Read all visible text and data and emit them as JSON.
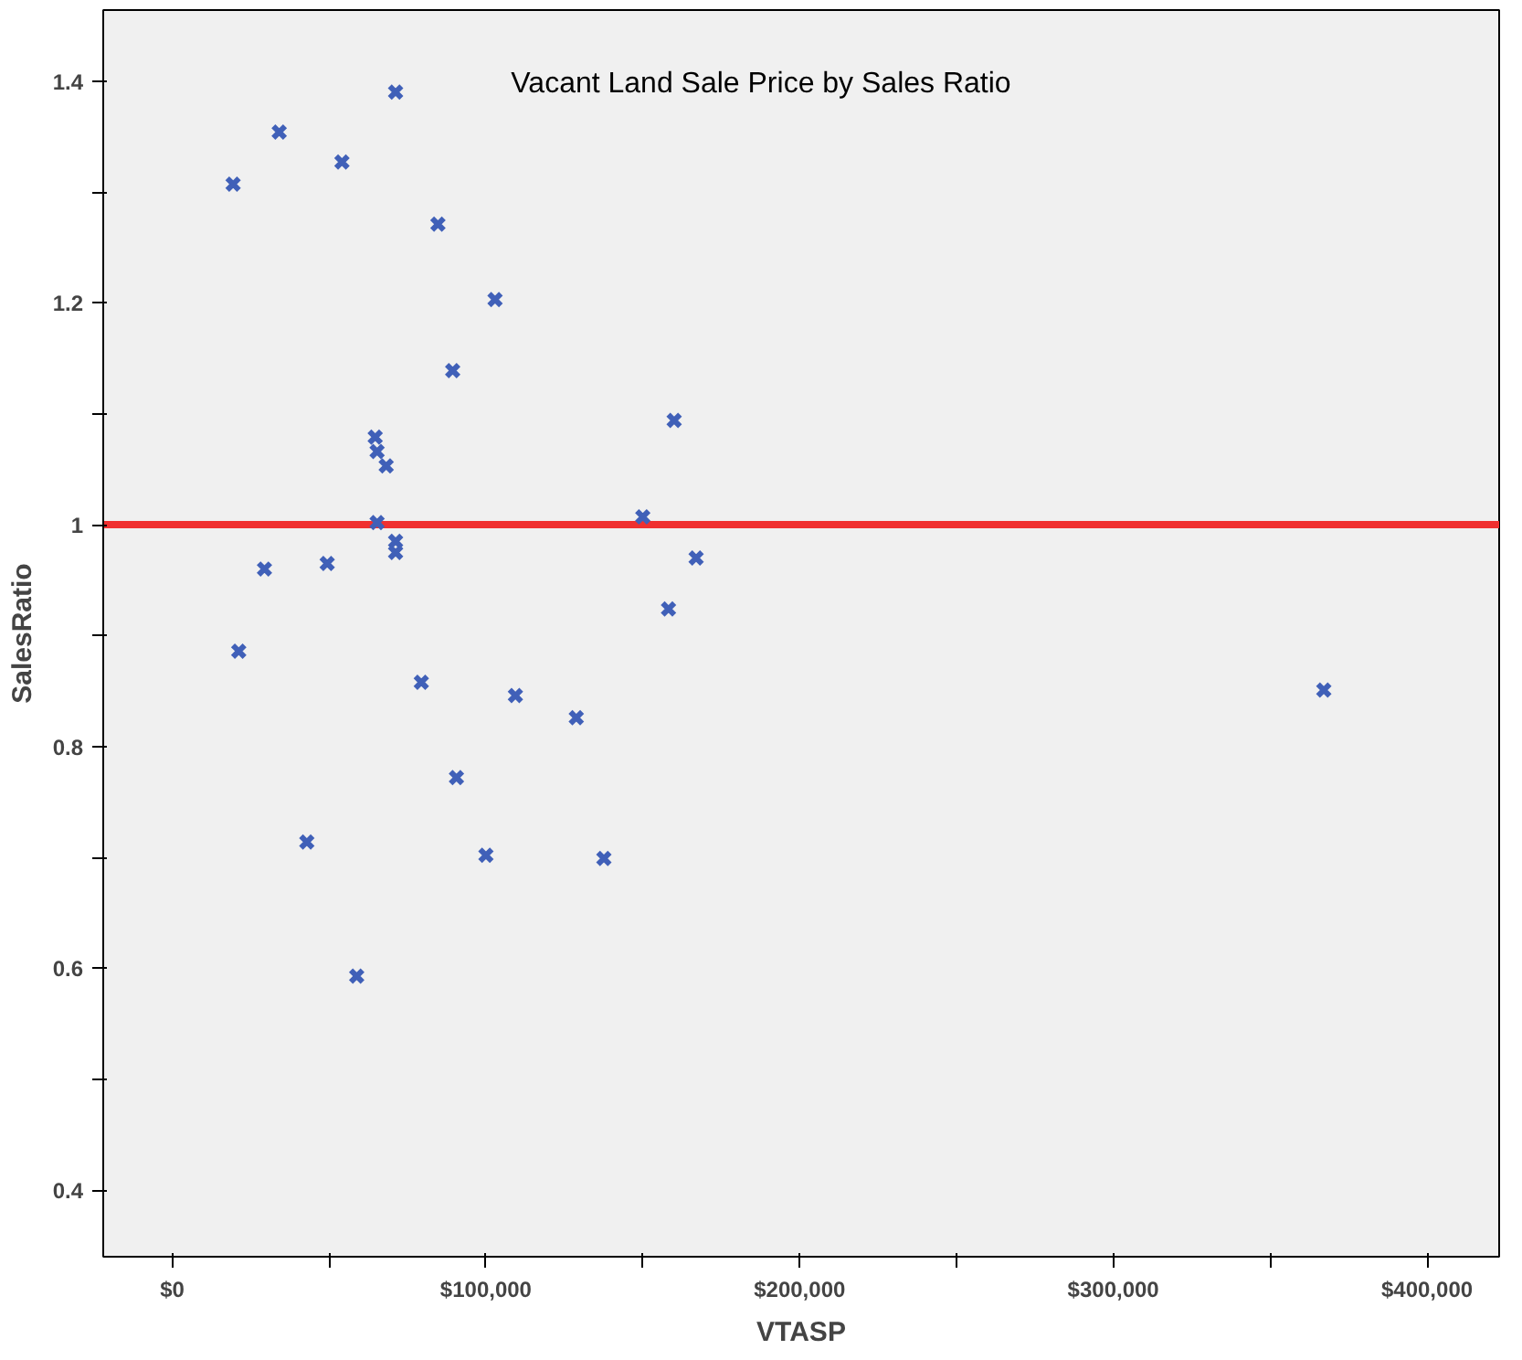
{
  "chart_data": {
    "type": "scatter",
    "title": "Vacant Land Sale Price by Sales Ratio",
    "xlabel": "VTASP",
    "ylabel": "SalesRatio",
    "x": [
      19400,
      34100,
      54100,
      71200,
      84700,
      102900,
      89400,
      160000,
      64700,
      65300,
      68200,
      65300,
      71200,
      71200,
      150000,
      167000,
      29400,
      49400,
      158200,
      21200,
      79400,
      109400,
      128800,
      367100,
      90600,
      42900,
      100000,
      137600,
      58800
    ],
    "series": [
      {
        "color": "#4060b8",
        "values": [
          1.307,
          1.354,
          1.327,
          1.39,
          1.271,
          1.203,
          1.139,
          1.094,
          1.079,
          1.066,
          1.053,
          1.002,
          0.985,
          0.975,
          1.007,
          0.97,
          0.96,
          0.965,
          0.924,
          0.886,
          0.858,
          0.846,
          0.826,
          0.851,
          0.772,
          0.714,
          0.702,
          0.699,
          0.593
        ]
      }
    ],
    "xlim": [
      -22000,
      423000
    ],
    "ylim": [
      0.34,
      1.464
    ],
    "xticks": [
      {
        "value": 0,
        "label": "$0"
      },
      {
        "value": 50000,
        "label": null
      },
      {
        "value": 100000,
        "label": "$100,000"
      },
      {
        "value": 150000,
        "label": null
      },
      {
        "value": 200000,
        "label": "$200,000"
      },
      {
        "value": 250000,
        "label": null
      },
      {
        "value": 300000,
        "label": "$300,000"
      },
      {
        "value": 350000,
        "label": null
      },
      {
        "value": 400000,
        "label": "$400,000"
      }
    ],
    "yticks": [
      {
        "value": 0.4,
        "label": "0.4"
      },
      {
        "value": 0.5,
        "label": null
      },
      {
        "value": 0.6,
        "label": "0.6"
      },
      {
        "value": 0.7,
        "label": null
      },
      {
        "value": 0.8,
        "label": "0.8"
      },
      {
        "value": 0.9,
        "label": null
      },
      {
        "value": 1,
        "label": "1"
      },
      {
        "value": 1.1,
        "label": null
      },
      {
        "value": 1.2,
        "label": "1.2"
      },
      {
        "value": 1.3,
        "label": null
      },
      {
        "value": 1.4,
        "label": "1.4"
      }
    ],
    "ref_lines": [
      {
        "axis": "y",
        "value": 1,
        "color": "#f03030"
      }
    ],
    "marker": "cross",
    "grid": false
  }
}
